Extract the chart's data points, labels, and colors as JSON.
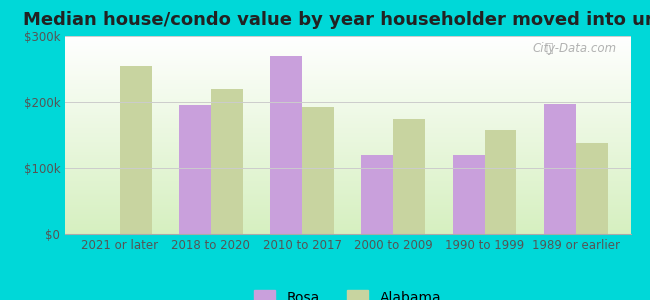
{
  "title": "Median house/condo value by year householder moved into unit",
  "categories": [
    "2021 or later",
    "2018 to 2020",
    "2010 to 2017",
    "2000 to 2009",
    "1990 to 1999",
    "1989 or earlier"
  ],
  "rosa_values": [
    null,
    195000,
    270000,
    120000,
    120000,
    197000
  ],
  "alabama_values": [
    255000,
    220000,
    193000,
    175000,
    158000,
    138000
  ],
  "rosa_color": "#c9a0dc",
  "alabama_color": "#c8d4a0",
  "background_outer": "#00d8d8",
  "background_inner_bottom": "#d6f0c0",
  "background_inner_top": "#f0faf0",
  "ylim": [
    0,
    300000
  ],
  "yticks": [
    0,
    100000,
    200000,
    300000
  ],
  "ytick_labels": [
    "$0",
    "$100k",
    "$200k",
    "$300k"
  ],
  "legend_labels": [
    "Rosa",
    "Alabama"
  ],
  "bar_width": 0.35,
  "title_fontsize": 13,
  "tick_fontsize": 8.5,
  "legend_fontsize": 10,
  "watermark_text": "City-Data.com"
}
